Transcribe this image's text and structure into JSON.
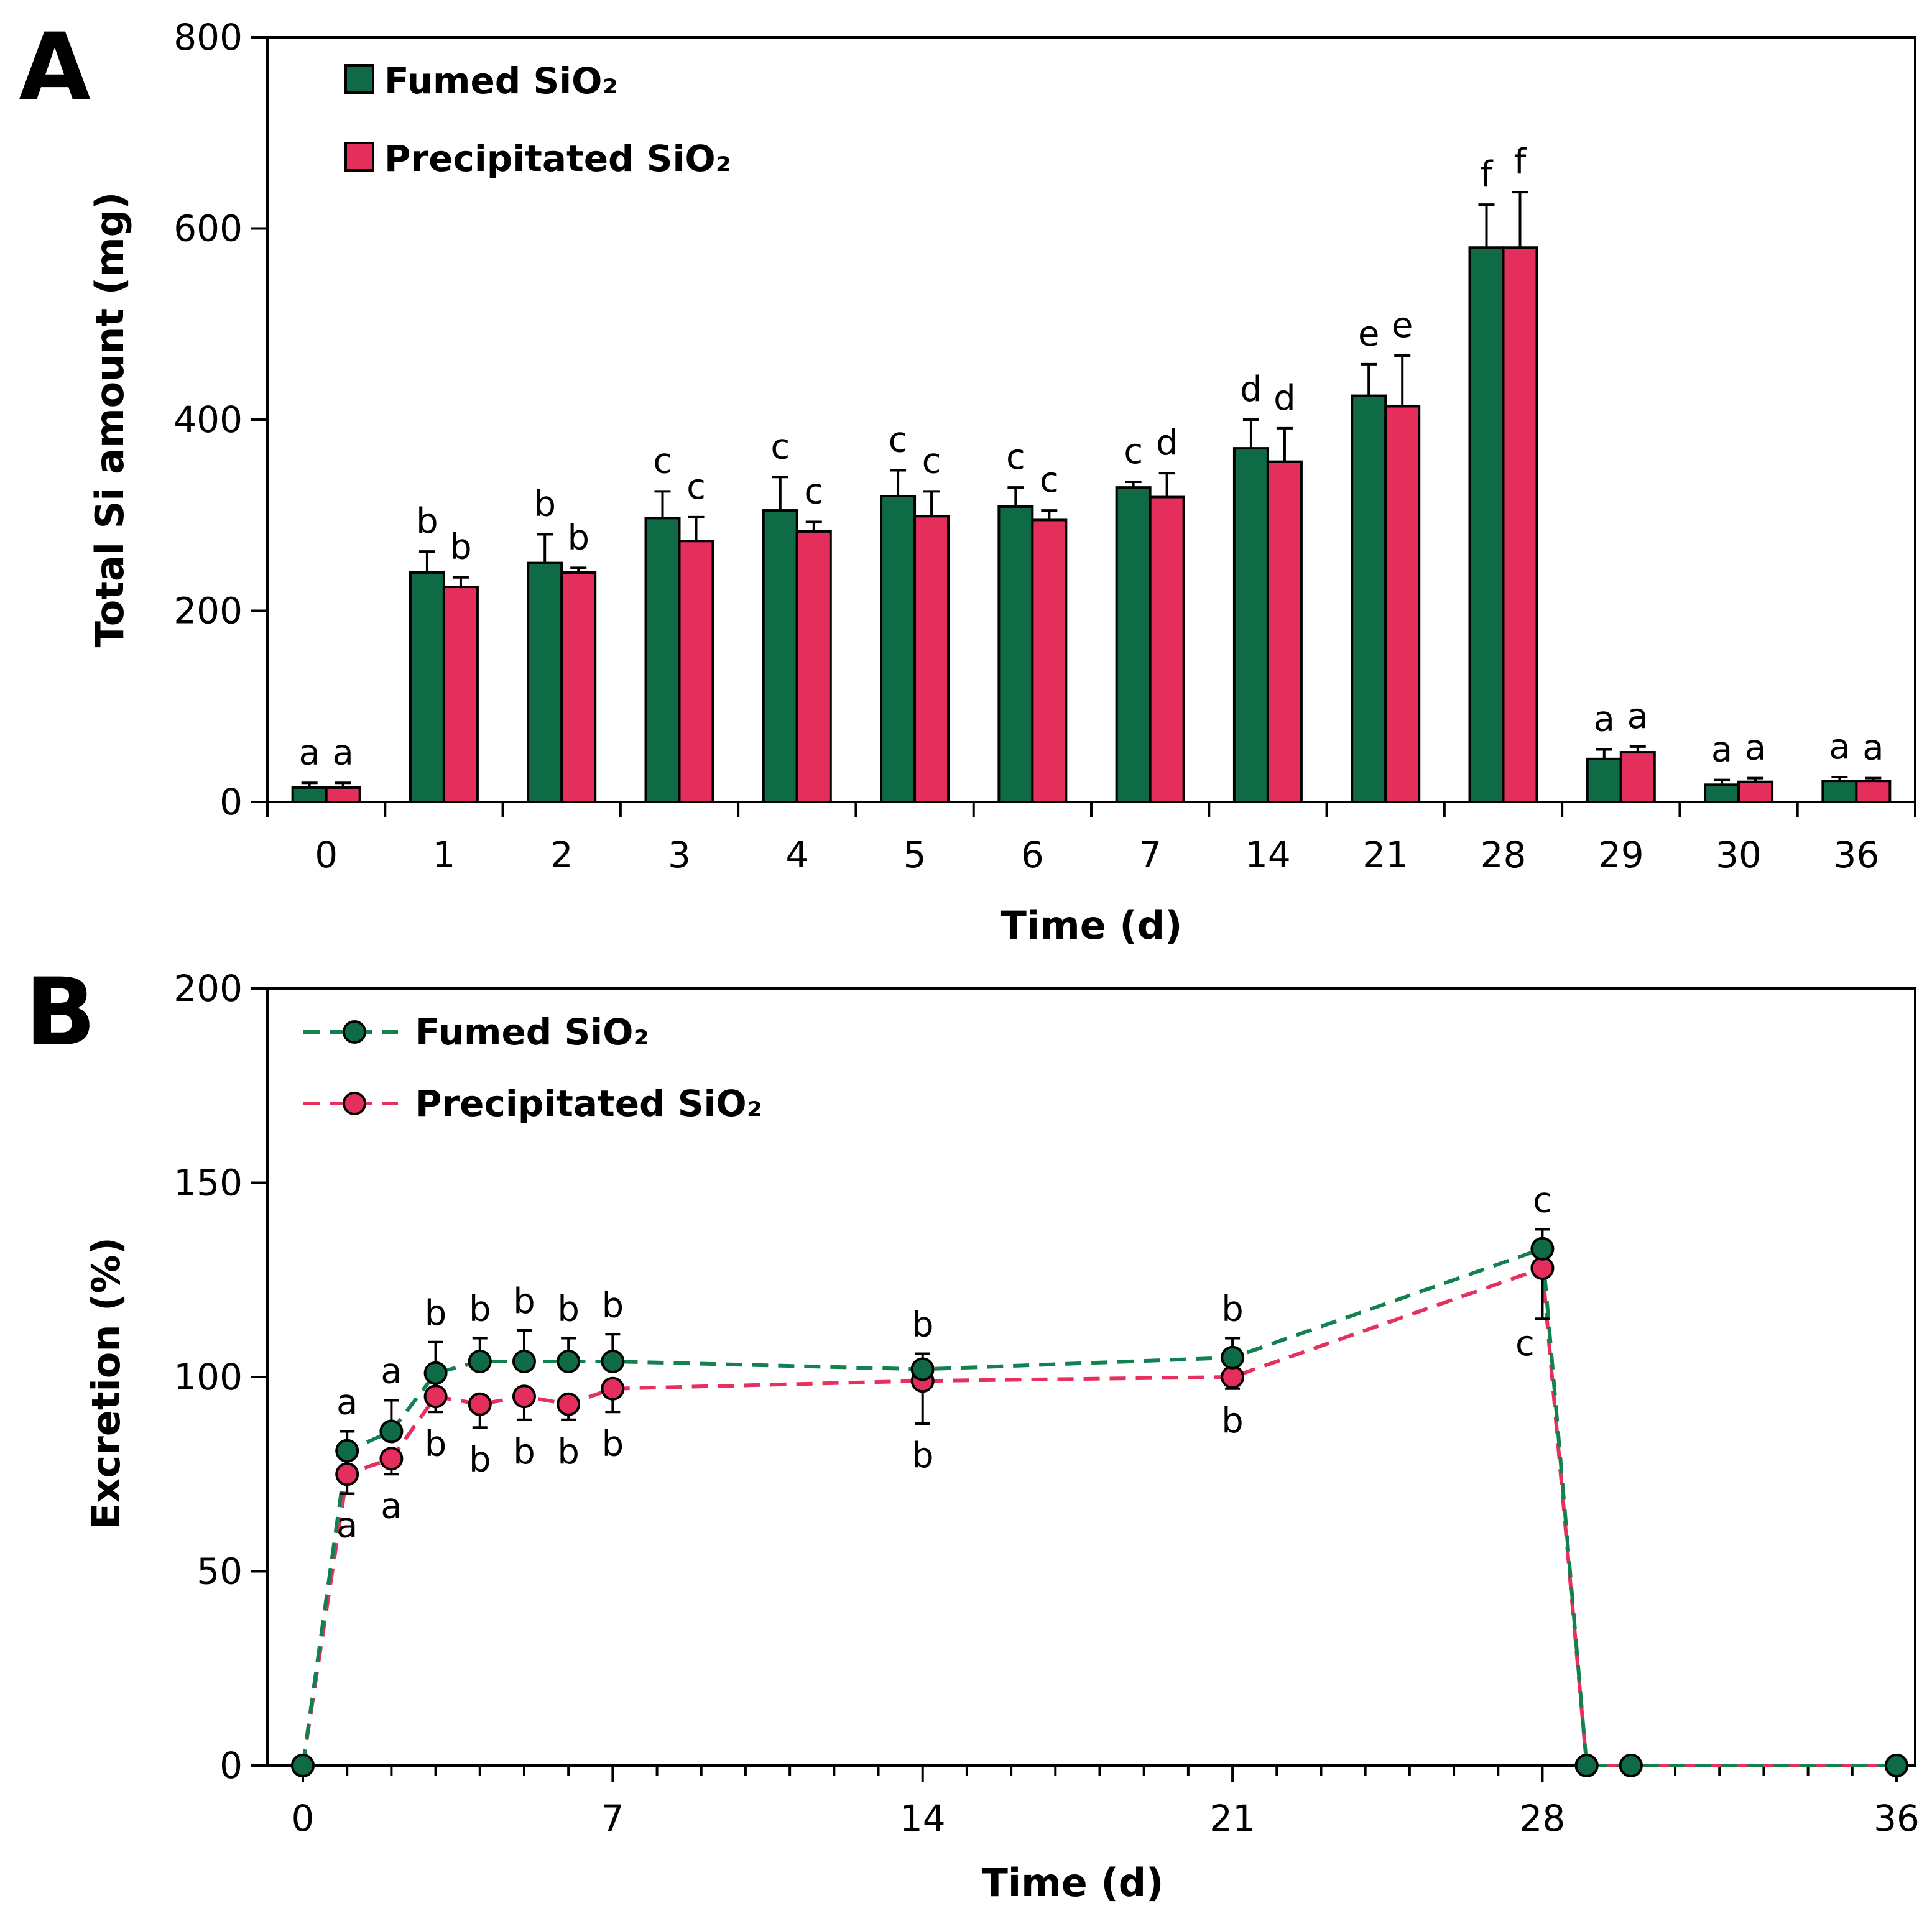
{
  "chart_data": [
    {
      "panel": "A",
      "type": "bar",
      "xlabel": "Time (d)",
      "ylabel": "Total Si amount (mg)",
      "ylim": [
        0,
        800
      ],
      "yticks": [
        0,
        200,
        400,
        600,
        800
      ],
      "categories": [
        "0",
        "1",
        "2",
        "3",
        "4",
        "5",
        "6",
        "7",
        "14",
        "21",
        "28",
        "29",
        "30",
        "36"
      ],
      "legend": [
        "Fumed SiO₂",
        "Precipitated SiO₂"
      ],
      "legend_position": "top-left",
      "series": [
        {
          "name": "Fumed SiO₂",
          "color": "#0e6b46",
          "values": [
            15,
            240,
            250,
            297,
            305,
            320,
            309,
            329,
            370,
            425,
            580,
            45,
            18,
            22
          ],
          "errors": [
            5,
            22,
            30,
            28,
            35,
            27,
            20,
            6,
            30,
            33,
            45,
            10,
            5,
            4
          ],
          "labels": [
            "a",
            "b",
            "b",
            "c",
            "c",
            "c",
            "c",
            "c",
            "d",
            "e",
            "f",
            "a",
            "a",
            "a"
          ]
        },
        {
          "name": "Precipitated SiO₂",
          "color": "#e42e5c",
          "values": [
            15,
            225,
            240,
            273,
            283,
            299,
            295,
            319,
            356,
            414,
            580,
            52,
            21,
            22
          ],
          "errors": [
            5,
            10,
            5,
            25,
            10,
            26,
            10,
            25,
            35,
            53,
            58,
            6,
            4,
            3
          ],
          "labels": [
            "a",
            "b",
            "b",
            "c",
            "c",
            "c",
            "c",
            "d",
            "d",
            "e",
            "f",
            "a",
            "a",
            "a"
          ]
        }
      ]
    },
    {
      "panel": "B",
      "type": "line",
      "xlabel": "Time (d)",
      "ylabel": "Excretion (%)",
      "xlim": [
        0,
        36
      ],
      "ylim": [
        0,
        200
      ],
      "xticks": [
        0,
        7,
        14,
        21,
        28,
        36
      ],
      "yticks": [
        0,
        50,
        100,
        150,
        200
      ],
      "legend": [
        "Fumed SiO₂",
        "Precipitated SiO₂"
      ],
      "legend_position": "top-left",
      "series": [
        {
          "name": "Fumed SiO₂",
          "color": "#0e6b46",
          "line_color": "#13804f",
          "x": [
            0,
            1,
            2,
            3,
            4,
            5,
            6,
            7,
            14,
            21,
            28,
            29,
            30,
            36
          ],
          "y": [
            0,
            81,
            86,
            101,
            104,
            104,
            104,
            104,
            102,
            105,
            133,
            0,
            0,
            0
          ],
          "errors": [
            0,
            5,
            8,
            8,
            6,
            8,
            6,
            7,
            4,
            5,
            5,
            0,
            0,
            0
          ],
          "labels": [
            "",
            "a",
            "a",
            "b",
            "b",
            "b",
            "b",
            "b",
            "b",
            "b",
            "c",
            "",
            "",
            ""
          ]
        },
        {
          "name": "Precipitated SiO₂",
          "color": "#e42e5c",
          "line_color": "#e6305d",
          "x": [
            0,
            1,
            2,
            3,
            4,
            5,
            6,
            7,
            14,
            21,
            28,
            29,
            30,
            36
          ],
          "y": [
            0,
            75,
            79,
            95,
            93,
            95,
            93,
            97,
            99,
            100,
            128,
            0,
            0,
            0
          ],
          "errors": [
            0,
            5,
            4,
            4,
            6,
            6,
            4,
            6,
            11,
            3,
            13,
            0,
            0,
            0
          ],
          "labels": [
            "",
            "a",
            "a",
            "b",
            "b",
            "b",
            "b",
            "b",
            "b",
            "b",
            "c",
            "",
            "",
            ""
          ]
        }
      ]
    }
  ]
}
